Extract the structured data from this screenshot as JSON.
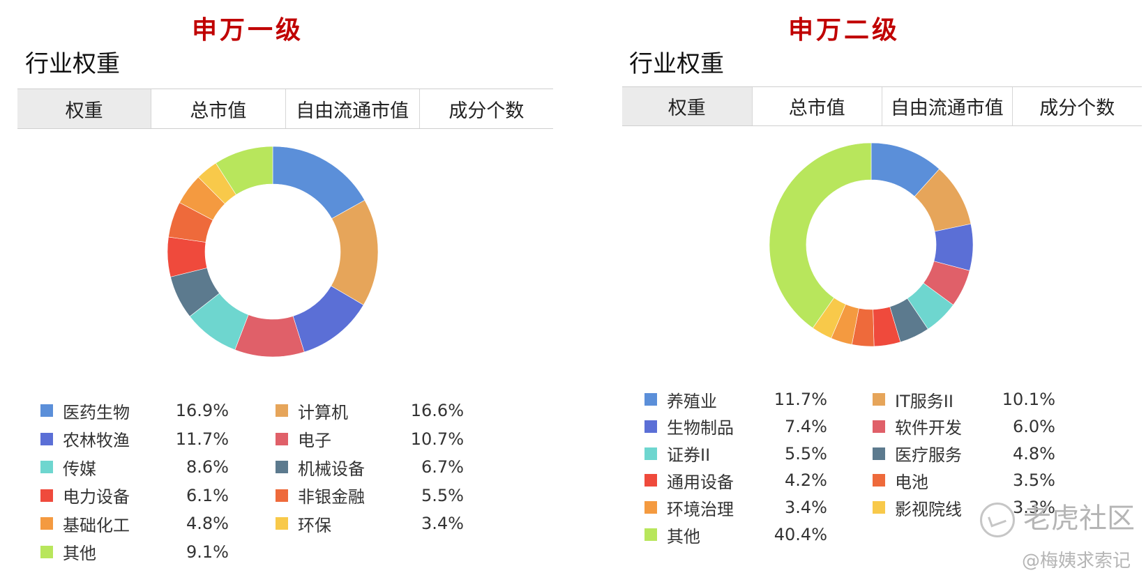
{
  "colors": {
    "heading_red": "#c00000",
    "active_tab_bg": "#ebebeb"
  },
  "left": {
    "heading": "申万一级",
    "section_title": "行业权重",
    "tabs": [
      "权重",
      "总市值",
      "自由流通市值",
      "成分个数"
    ],
    "active_tab": 0
  },
  "right": {
    "heading": "申万二级",
    "section_title": "行业权重",
    "tabs": [
      "权重",
      "总市值",
      "自由流通市值",
      "成分个数"
    ],
    "active_tab": 0
  },
  "chart_data": [
    {
      "type": "pie",
      "donut": true,
      "start_angle": "12 o'clock, clockwise",
      "legend_position": "bottom",
      "categories": [
        "医药生物",
        "计算机",
        "农林牧渔",
        "电子",
        "传媒",
        "机械设备",
        "电力设备",
        "非银金融",
        "基础化工",
        "环保",
        "其他"
      ],
      "values": [
        16.9,
        16.6,
        11.7,
        10.7,
        8.6,
        6.7,
        6.1,
        5.5,
        4.8,
        3.4,
        9.1
      ],
      "labels": [
        "16.9%",
        "16.6%",
        "11.7%",
        "10.7%",
        "8.6%",
        "6.7%",
        "6.1%",
        "5.5%",
        "4.8%",
        "3.4%",
        "9.1%"
      ],
      "colors": [
        "#5b8fd9",
        "#e6a55a",
        "#5b6fd6",
        "#e06069",
        "#6ed6cf",
        "#5c7a8e",
        "#ef4a3c",
        "#ee6a3b",
        "#f49a40",
        "#f8c94a",
        "#b8e65c"
      ],
      "unit": "%"
    },
    {
      "type": "pie",
      "donut": true,
      "start_angle": "12 o'clock, clockwise",
      "legend_position": "bottom",
      "categories": [
        "养殖业",
        "IT服务II",
        "生物制品",
        "软件开发",
        "证券II",
        "医疗服务",
        "通用设备",
        "电池",
        "环境治理",
        "影视院线",
        "其他"
      ],
      "values": [
        11.7,
        10.1,
        7.4,
        6.0,
        5.5,
        4.8,
        4.2,
        3.5,
        3.4,
        3.3,
        40.4
      ],
      "labels": [
        "11.7%",
        "10.1%",
        "7.4%",
        "6.0%",
        "5.5%",
        "4.8%",
        "4.2%",
        "3.5%",
        "3.4%",
        "3.3%",
        "40.4%"
      ],
      "colors": [
        "#5b8fd9",
        "#e6a55a",
        "#5b6fd6",
        "#e06069",
        "#6ed6cf",
        "#5c7a8e",
        "#ef4a3c",
        "#ee6a3b",
        "#f49a40",
        "#f8c94a",
        "#b8e65c"
      ],
      "unit": "%"
    }
  ],
  "watermark": {
    "site": "老虎社区",
    "author": "@梅姨求索记"
  }
}
